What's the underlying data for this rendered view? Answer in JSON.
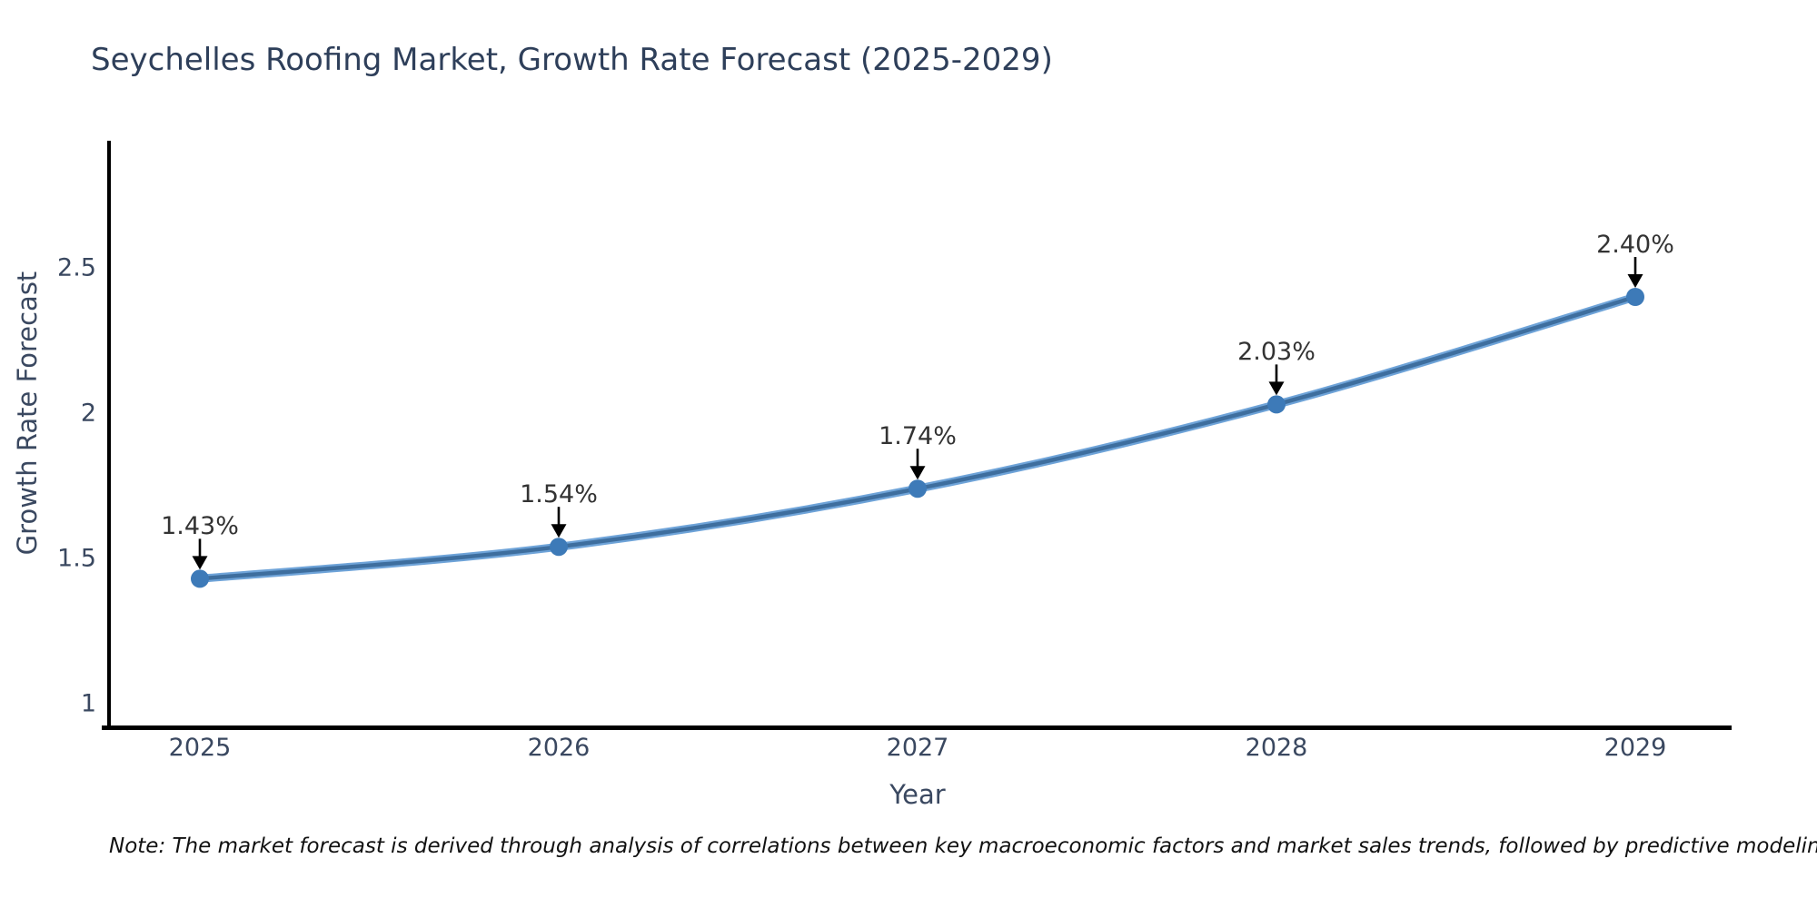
{
  "title": {
    "text": "Seychelles Roofing Market, Growth Rate Forecast (2025-2029)",
    "color": "#2e3f5a"
  },
  "note": {
    "text": "Note: The market forecast is derived through analysis of correlations between key macroeconomic factors and market sales trends, followed by predictive modeling to project future sales"
  },
  "chart_data": {
    "type": "line",
    "title": "Seychelles Roofing Market, Growth Rate Forecast (2025-2029)",
    "x": [
      2025,
      2026,
      2027,
      2028,
      2029
    ],
    "categories": [
      "2025",
      "2026",
      "2027",
      "2028",
      "2029"
    ],
    "series": [
      {
        "name": "Growth Rate Forecast",
        "values": [
          1.43,
          1.54,
          1.74,
          2.03,
          2.4
        ]
      }
    ],
    "point_labels": [
      "1.43%",
      "1.54%",
      "1.74%",
      "2.03%",
      "2.40%"
    ],
    "xlabel": "Year",
    "ylabel": "Growth Rate Forecast",
    "ylim": [
      1,
      2.9
    ],
    "yticks": [
      "1",
      "1.5",
      "2",
      "2.5"
    ],
    "ytick_values": [
      1,
      1.5,
      2,
      2.5
    ],
    "xticks": [
      "2025",
      "2026",
      "2027",
      "2028",
      "2029"
    ],
    "grid": false,
    "legend": "none",
    "colors": {
      "line": "#3e6e9e",
      "line_halo": "#6ea3d8",
      "marker": "#3d7ab8",
      "arrow": "#000000",
      "spine": "#000000",
      "tick_text": "#3a4860",
      "annotation_text": "#333333",
      "title_text": "#2e3f5a"
    }
  }
}
